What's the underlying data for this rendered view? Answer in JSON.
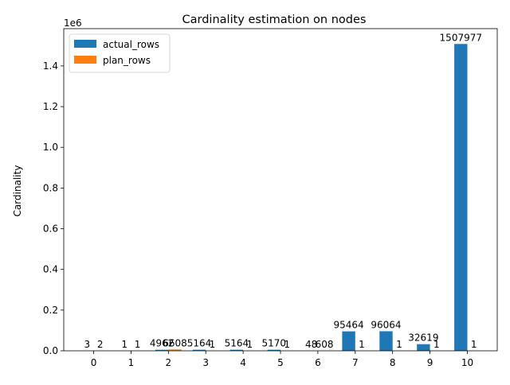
{
  "chart_data": {
    "type": "bar",
    "title": "Cardinality estimation on nodes",
    "xlabel": "",
    "ylabel": "Cardinality",
    "offset_label": "1e6",
    "ylim": [
      0,
      1583376
    ],
    "y_ticks": [
      0,
      200000,
      400000,
      600000,
      800000,
      1000000,
      1200000,
      1400000
    ],
    "y_tick_labels": [
      "0.0",
      "0.2",
      "0.4",
      "0.6",
      "0.8",
      "1.0",
      "1.2",
      "1.4"
    ],
    "categories": [
      "0",
      "1",
      "2",
      "3",
      "4",
      "5",
      "6",
      "7",
      "8",
      "9",
      "10"
    ],
    "series": [
      {
        "name": "actual_rows",
        "color": "#1f77b4",
        "values": [
          3,
          1,
          4962,
          5164,
          5164,
          5170,
          48,
          95464,
          96064,
          32619,
          1507977
        ]
      },
      {
        "name": "plan_rows",
        "color": "#ff7f0e",
        "values": [
          2,
          1,
          6608,
          1,
          1,
          1,
          608,
          1,
          1,
          1,
          1
        ]
      }
    ],
    "legend_position": "top-left",
    "grid": false
  }
}
